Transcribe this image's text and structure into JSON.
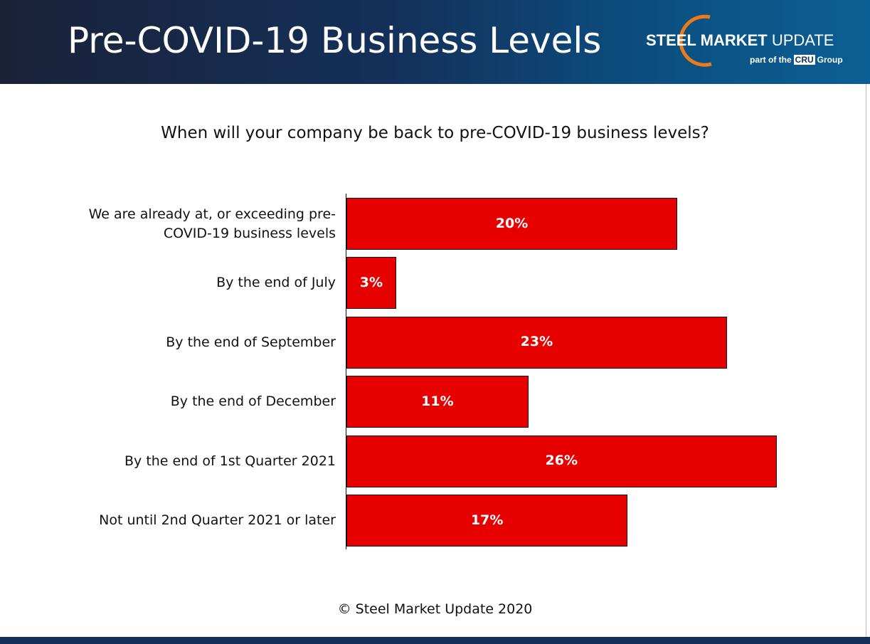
{
  "header": {
    "logo_bold": "STEEL MARKET",
    "logo_light": "UPDATE",
    "tagline_prefix": "part of the",
    "tagline_brand": "CRU",
    "tagline_suffix": "Group"
  },
  "chart_data": {
    "type": "bar",
    "orientation": "horizontal",
    "title": "Pre-COVID-19 Business Levels",
    "subtitle": "When will your company be back to pre-COVID-19 business levels?",
    "categories": [
      "We are already at, or exceeding pre-COVID-19 business levels",
      "By the end of July",
      "By the end of September",
      "By the end of December",
      "By the end of 1st Quarter 2021",
      "Not until 2nd Quarter 2021 or later"
    ],
    "values": [
      20,
      3,
      23,
      11,
      26,
      17
    ],
    "value_labels": [
      "20%",
      "3%",
      "23%",
      "11%",
      "26%",
      "17%"
    ],
    "color": "#e60000",
    "footer": "© Steel Market Update 2020"
  }
}
